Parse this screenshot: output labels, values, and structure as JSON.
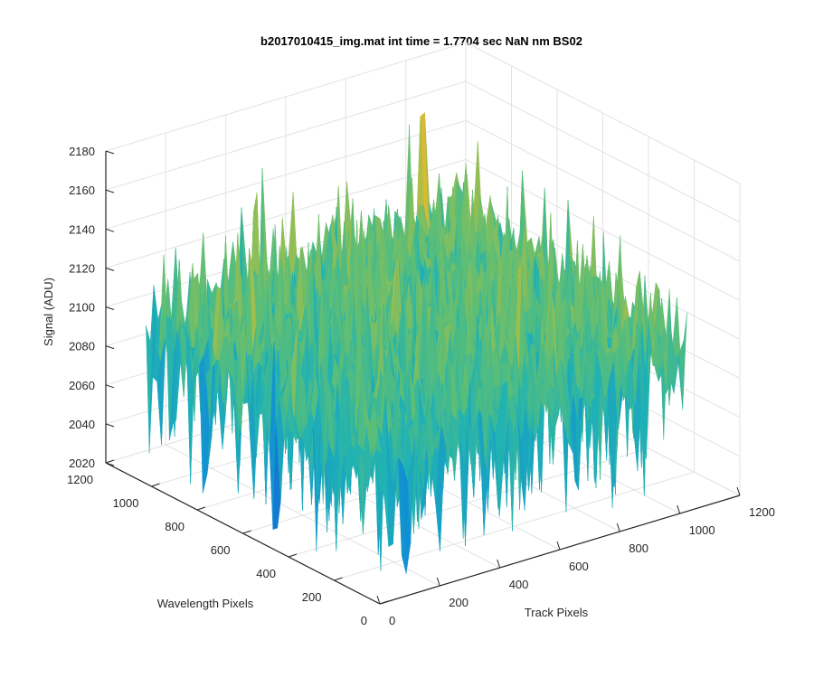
{
  "chart_data": {
    "type": "surface",
    "title": "b2017010415_img.mat int time = 1.7704 sec  NaN nm BS02",
    "xlabel": "Track Pixels",
    "ylabel": "Wavelength Pixels",
    "zlabel": "Signal (ADU)",
    "xlim": [
      0,
      1200
    ],
    "ylim": [
      0,
      1200
    ],
    "zlim": [
      2020,
      2180
    ],
    "x_ticks": [
      "0",
      "200",
      "400",
      "600",
      "800",
      "1000",
      "1200"
    ],
    "y_ticks": [
      "0",
      "200",
      "400",
      "600",
      "800",
      "1000",
      "1200"
    ],
    "z_ticks": [
      "2020",
      "2040",
      "2060",
      "2080",
      "2100",
      "2120",
      "2140",
      "2160",
      "2180"
    ],
    "grid": true,
    "colormap": "parula",
    "colors": {
      "low": "#0072BD",
      "mid": "#2FB5A0",
      "high": "#EDB120"
    },
    "surface": {
      "x_extent": [
        0,
        1024
      ],
      "y_extent": [
        0,
        1024
      ],
      "mean_signal": 2100,
      "noise_min": 2030,
      "noise_max": 2170
    }
  }
}
